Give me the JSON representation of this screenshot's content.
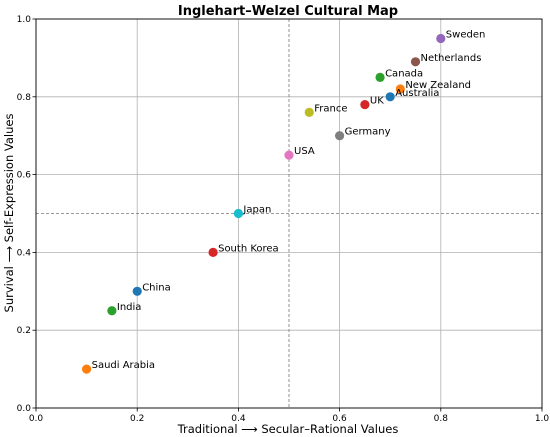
{
  "chart_data": {
    "type": "scatter",
    "title": "Inglehart–Welzel Cultural Map",
    "xlabel": "Traditional ⟶ Secular–Rational Values",
    "ylabel": "Survival ⟶ Self-Expression Values",
    "xlim": [
      0,
      1
    ],
    "ylim": [
      0,
      1
    ],
    "xticks": [
      "0.0",
      "0.2",
      "0.4",
      "0.6",
      "0.8",
      "1.0"
    ],
    "yticks": [
      "0.0",
      "0.2",
      "0.4",
      "0.6",
      "0.8",
      "1.0"
    ],
    "grid": true,
    "reference_lines": {
      "x": 0.5,
      "y": 0.5,
      "style": "dashed"
    },
    "points": [
      {
        "label": "Sweden",
        "x": 0.8,
        "y": 0.95,
        "color": "#9467bd"
      },
      {
        "label": "Netherlands",
        "x": 0.75,
        "y": 0.89,
        "color": "#8c564b"
      },
      {
        "label": "Canada",
        "x": 0.68,
        "y": 0.85,
        "color": "#2ca02c"
      },
      {
        "label": "New Zealand",
        "x": 0.72,
        "y": 0.82,
        "color": "#ff7f0e"
      },
      {
        "label": "Australia",
        "x": 0.7,
        "y": 0.8,
        "color": "#1f77b4"
      },
      {
        "label": "UK",
        "x": 0.65,
        "y": 0.78,
        "color": "#d62728"
      },
      {
        "label": "France",
        "x": 0.54,
        "y": 0.76,
        "color": "#bcbd22"
      },
      {
        "label": "Germany",
        "x": 0.6,
        "y": 0.7,
        "color": "#7f7f7f"
      },
      {
        "label": "USA",
        "x": 0.5,
        "y": 0.65,
        "color": "#e377c2"
      },
      {
        "label": "Japan",
        "x": 0.4,
        "y": 0.5,
        "color": "#17becf"
      },
      {
        "label": "South Korea",
        "x": 0.35,
        "y": 0.4,
        "color": "#d62728"
      },
      {
        "label": "China",
        "x": 0.2,
        "y": 0.3,
        "color": "#1f77b4"
      },
      {
        "label": "India",
        "x": 0.15,
        "y": 0.25,
        "color": "#2ca02c"
      },
      {
        "label": "Saudi Arabia",
        "x": 0.1,
        "y": 0.1,
        "color": "#ff7f0e"
      }
    ]
  }
}
